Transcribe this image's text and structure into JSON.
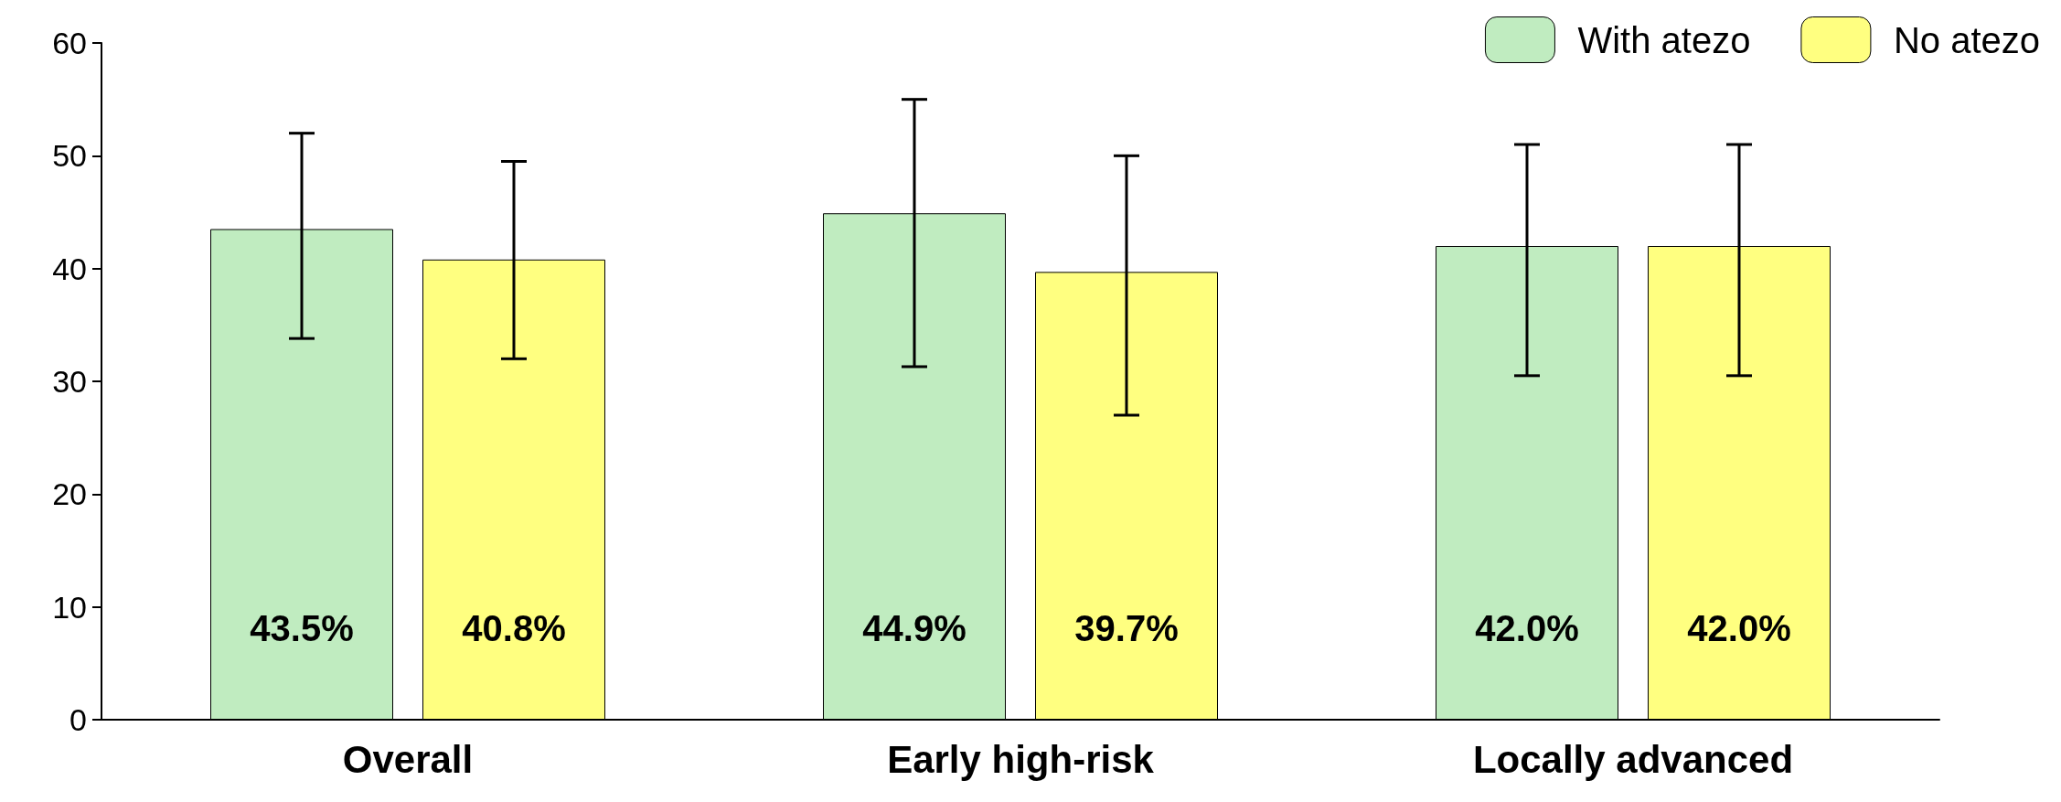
{
  "chart_data": {
    "type": "bar",
    "categories": [
      "Overall",
      "Early high-risk",
      "Locally advanced"
    ],
    "series": [
      {
        "name": "With atezo",
        "color": "#c0ecc0",
        "values": [
          43.5,
          44.9,
          42.0
        ],
        "errors": [
          [
            33.8,
            52
          ],
          [
            31.3,
            55
          ],
          [
            30.5,
            51
          ]
        ],
        "value_labels": [
          "43.5%",
          "44.9%",
          "42.0%"
        ]
      },
      {
        "name": "No atezo",
        "color": "#ffff80",
        "values": [
          40.8,
          39.7,
          42.0
        ],
        "errors": [
          [
            32,
            49.5
          ],
          [
            27,
            50
          ],
          [
            30.5,
            51
          ]
        ],
        "value_labels": [
          "40.8%",
          "39.7%",
          "42.0%"
        ]
      }
    ],
    "ylim": [
      0,
      60
    ],
    "yticks": [
      0,
      10,
      20,
      30,
      40,
      50,
      60
    ],
    "grid": false,
    "legend": "top right"
  }
}
